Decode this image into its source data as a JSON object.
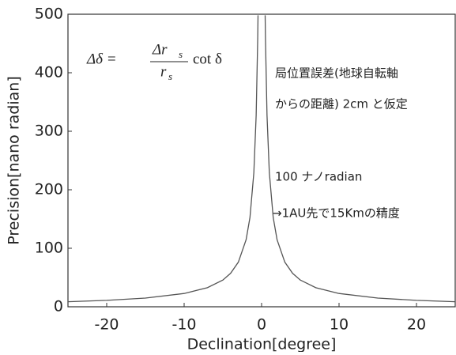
{
  "chart_data": {
    "type": "line",
    "xlabel": "Declination[degree]",
    "ylabel": "Precision[nano radian]",
    "x": [
      -25,
      -20,
      -15,
      -10,
      -7,
      -5,
      -4,
      -3,
      -2,
      -1.5,
      -1,
      -0.7,
      -0.5,
      -0.46,
      0,
      0.46,
      0.5,
      0.7,
      1,
      1.5,
      2,
      3,
      4,
      5,
      7,
      10,
      15,
      20,
      25
    ],
    "series": [
      {
        "color": "#555555",
        "values": [
          8.6,
          11.0,
          14.9,
          22.7,
          32.6,
          45.7,
          57.2,
          76.3,
          114.5,
          152.7,
          229.1,
          327.4,
          458.4,
          498.2,
          null,
          498.2,
          458.4,
          327.4,
          229.1,
          152.7,
          114.5,
          76.3,
          57.2,
          45.7,
          32.6,
          22.7,
          14.9,
          11.0,
          8.6
        ]
      }
    ],
    "xlim": [
      -25,
      25
    ],
    "xticks": [
      -20,
      -10,
      0,
      10,
      20
    ],
    "ylim": [
      0,
      500
    ],
    "yticks": [
      0,
      100,
      200,
      300,
      400,
      500
    ],
    "formula": {
      "lhs": "Δδ =",
      "numerator": "Δr",
      "numerator_sub": "s",
      "denominator": "r",
      "denominator_sub": "s",
      "rhs": "cot δ"
    },
    "annotations": [
      "局位置誤差(地球自転軸",
      "からの距離) 2cm と仮定",
      "100 ナノradian",
      "→1AU先で15Kmの精度"
    ]
  }
}
